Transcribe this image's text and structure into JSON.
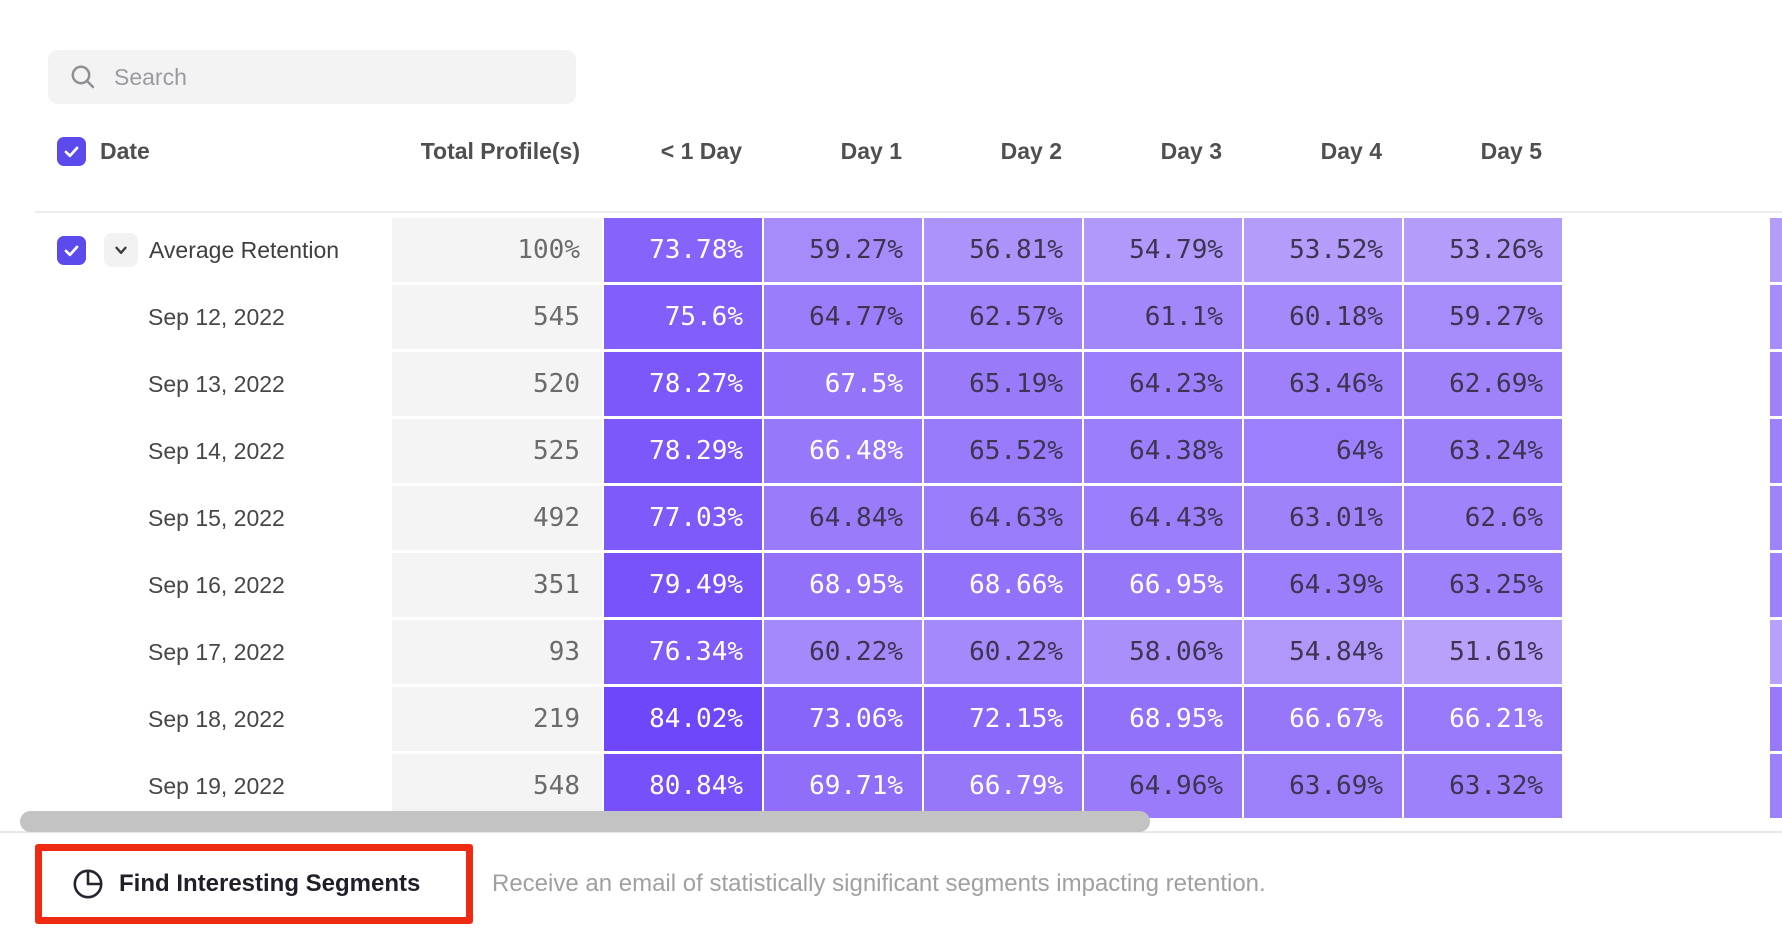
{
  "search": {
    "placeholder": "Search"
  },
  "table": {
    "select_all_checked": true,
    "date_header": "Date",
    "columns": [
      "Total Profile(s)",
      "< 1 Day",
      "Day 1",
      "Day 2",
      "Day 3",
      "Day 4",
      "Day 5"
    ],
    "rows": [
      {
        "label": "Average Retention",
        "expandable": true,
        "checked": true,
        "total": "100%",
        "values": [
          "73.78%",
          "59.27%",
          "56.81%",
          "54.79%",
          "53.52%",
          "53.26%"
        ]
      },
      {
        "label": "Sep 12, 2022",
        "total": "545",
        "values": [
          "75.6%",
          "64.77%",
          "62.57%",
          "61.1%",
          "60.18%",
          "59.27%"
        ]
      },
      {
        "label": "Sep 13, 2022",
        "total": "520",
        "values": [
          "78.27%",
          "67.5%",
          "65.19%",
          "64.23%",
          "63.46%",
          "62.69%"
        ]
      },
      {
        "label": "Sep 14, 2022",
        "total": "525",
        "values": [
          "78.29%",
          "66.48%",
          "65.52%",
          "64.38%",
          "64%",
          "63.24%"
        ]
      },
      {
        "label": "Sep 15, 2022",
        "total": "492",
        "values": [
          "77.03%",
          "64.84%",
          "64.63%",
          "64.43%",
          "63.01%",
          "62.6%"
        ]
      },
      {
        "label": "Sep 16, 2022",
        "total": "351",
        "values": [
          "79.49%",
          "68.95%",
          "68.66%",
          "66.95%",
          "64.39%",
          "63.25%"
        ]
      },
      {
        "label": "Sep 17, 2022",
        "total": "93",
        "values": [
          "76.34%",
          "60.22%",
          "60.22%",
          "58.06%",
          "54.84%",
          "51.61%"
        ]
      },
      {
        "label": "Sep 18, 2022",
        "total": "219",
        "values": [
          "84.02%",
          "73.06%",
          "72.15%",
          "68.95%",
          "66.67%",
          "66.21%"
        ]
      },
      {
        "label": "Sep 19, 2022",
        "total": "548",
        "values": [
          "80.84%",
          "69.71%",
          "66.79%",
          "64.96%",
          "63.69%",
          "63.32%"
        ]
      }
    ]
  },
  "footer": {
    "button_label": "Find Interesting Segments",
    "description": "Receive an email of statistically significant segments impacting retention."
  },
  "colors": {
    "checkbox_purple": "#5b4aec",
    "cell_scale_light": "#bba6fa",
    "cell_scale_dark": "#6d44fa",
    "cell_scale_min": 50,
    "cell_scale_max": 85,
    "white_text_threshold": 66,
    "cell_dark_text": "#3c3552",
    "annotation_red": "#ee2a12"
  }
}
